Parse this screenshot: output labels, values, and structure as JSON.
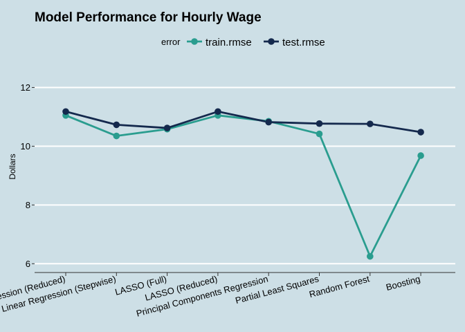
{
  "chart_data": {
    "type": "line",
    "title": "Model Performance for Hourly Wage",
    "xlabel": "",
    "ylabel": "Dollars",
    "categories": [
      "Linear Regression (Reduced)",
      "Linear Regression (Stepwise)",
      "LASSO (Full)",
      "LASSO (Reduced)",
      "Principal Components Regression",
      "Partial Least Squares",
      "Random Forest",
      "Boosting"
    ],
    "ylim": [
      5.7,
      13.0
    ],
    "yticks": [
      6,
      8,
      10,
      12
    ],
    "grid": true,
    "legend": {
      "title": "error",
      "position": "top"
    },
    "series": [
      {
        "name": "train.rmse",
        "color": "#2a9d8f",
        "values": [
          11.05,
          10.35,
          10.58,
          11.05,
          10.85,
          10.42,
          6.25,
          9.68
        ]
      },
      {
        "name": "test.rmse",
        "color": "#14294d",
        "values": [
          11.18,
          10.73,
          10.62,
          11.18,
          10.82,
          10.77,
          10.76,
          10.48
        ]
      }
    ]
  }
}
